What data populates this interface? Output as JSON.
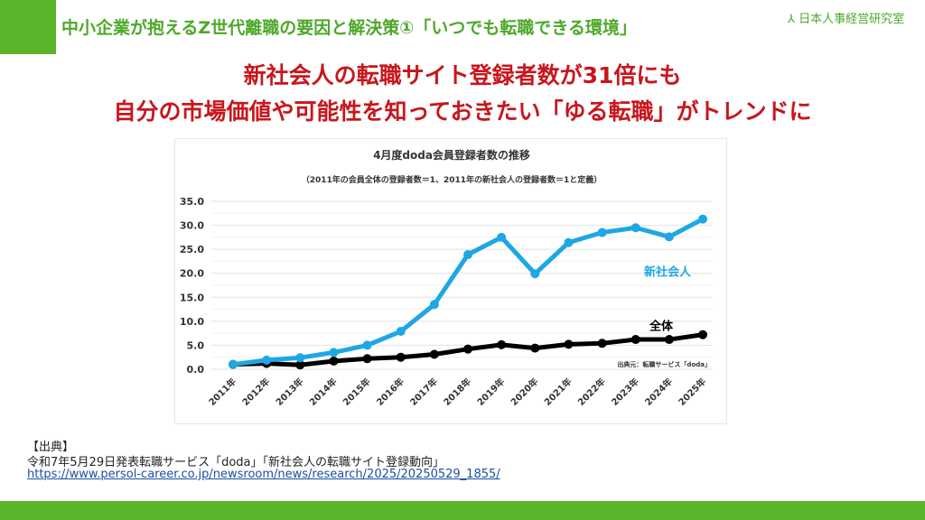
{
  "header": {
    "title": "中小企業が抱えるZ世代離職の要因と解決策①「いつでも転職できる環境」",
    "logo_text": "日本人事経営研究室"
  },
  "headline": {
    "line1": "新社会人の転職サイト登録者数が31倍にも",
    "line2": "自分の市場価値や可能性を知っておきたい「ゆる転職」がトレンドに"
  },
  "chart_data": {
    "type": "line",
    "title": "4月度doda会員登録者数の推移",
    "subtitle": "（2011年の会員全体の登録者数＝1、2011年の新社会人の登録者数＝1と定義）",
    "categories": [
      "2011年",
      "2012年",
      "2013年",
      "2014年",
      "2015年",
      "2016年",
      "2017年",
      "2018年",
      "2019年",
      "2020年",
      "2021年",
      "2022年",
      "2023年",
      "2024年",
      "2025年"
    ],
    "yticks": [
      "0.0",
      "5.0",
      "10.0",
      "15.0",
      "20.0",
      "25.0",
      "30.0",
      "35.0"
    ],
    "ylim": [
      0,
      35
    ],
    "grid": true,
    "series": [
      {
        "name": "新社会人",
        "color": "#1ea7e4",
        "values": [
          1.0,
          1.9,
          2.4,
          3.5,
          5.0,
          7.9,
          13.5,
          23.9,
          27.5,
          19.9,
          26.4,
          28.5,
          29.5,
          27.6,
          31.3
        ]
      },
      {
        "name": "全体",
        "color": "#000000",
        "values": [
          1.0,
          1.2,
          0.9,
          1.7,
          2.2,
          2.5,
          3.1,
          4.2,
          5.1,
          4.4,
          5.2,
          5.4,
          6.2,
          6.2,
          7.2
        ]
      }
    ],
    "source_note": "出典元：転職サービス「doda」"
  },
  "source": {
    "label": "【出典】",
    "text": "令和7年5月29日発表転職サービス「doda」「新社会人の転職サイト登録動向」",
    "url": "https://www.persol-career.co.jp/newsroom/news/research/2025/20250529_1855/"
  }
}
